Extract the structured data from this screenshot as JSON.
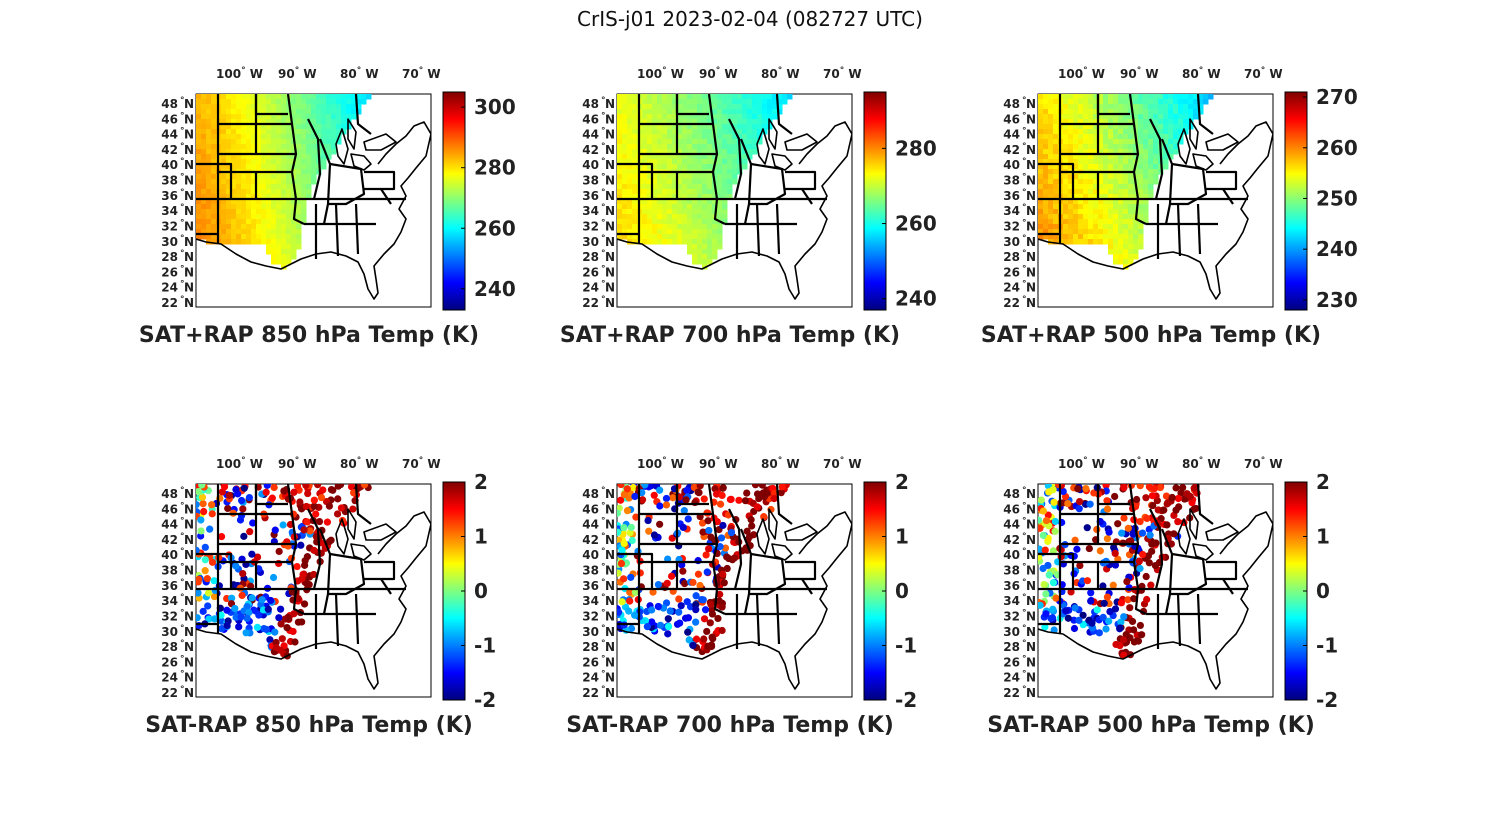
{
  "title": "CrIS-j01 2023-02-04 (082727 UTC)",
  "lon_labels": [
    "100",
    "90",
    "80",
    "70"
  ],
  "lon_suffix": "W",
  "lat_labels": [
    "48",
    "46",
    "44",
    "42",
    "40",
    "38",
    "36",
    "34",
    "32",
    "30",
    "28",
    "26",
    "24",
    "22"
  ],
  "lat_suffix": "N",
  "degree_symbol": "°",
  "colormap": "jet",
  "colors": {
    "jet": [
      "#00007f",
      "#0000ff",
      "#007fff",
      "#00ffff",
      "#7fff7f",
      "#ffff00",
      "#ff7f00",
      "#ff0000",
      "#7f0000"
    ]
  },
  "panels": [
    {
      "id": "p850",
      "title": "SAT+RAP 850 hPa Temp (K)",
      "kind": "temp",
      "cbar_ticks": [
        "300",
        "280",
        "260",
        "240"
      ],
      "range": [
        233,
        305
      ],
      "west_value": 285,
      "east_value": 262,
      "north_shift": -6
    },
    {
      "id": "p700",
      "title": "SAT+RAP 700 hPa Temp (K)",
      "kind": "temp",
      "cbar_ticks": [
        "280",
        "260",
        "240"
      ],
      "range": [
        237,
        295
      ],
      "west_value": 274,
      "east_value": 262,
      "north_shift": -6
    },
    {
      "id": "p500",
      "title": "SAT+RAP 500 hPa Temp (K)",
      "kind": "temp",
      "cbar_ticks": [
        "270",
        "260",
        "250",
        "240",
        "230"
      ],
      "range": [
        228,
        271
      ],
      "west_value": 258,
      "east_value": 247,
      "north_shift": -6
    },
    {
      "id": "d850",
      "title": "SAT-RAP 850 hPa Temp (K)",
      "kind": "diff",
      "cbar_ticks": [
        "2",
        "1",
        "0",
        "-1",
        "-2"
      ],
      "range": [
        -2,
        2
      ]
    },
    {
      "id": "d700",
      "title": "SAT-RAP 700 hPa Temp (K)",
      "kind": "diff",
      "cbar_ticks": [
        "2",
        "1",
        "0",
        "-1",
        "-2"
      ],
      "range": [
        -2,
        2
      ]
    },
    {
      "id": "d500",
      "title": "SAT-RAP 500 hPa Temp (K)",
      "kind": "diff",
      "cbar_ticks": [
        "2",
        "1",
        "0",
        "-1",
        "-2"
      ],
      "range": [
        -2,
        2
      ]
    }
  ]
}
